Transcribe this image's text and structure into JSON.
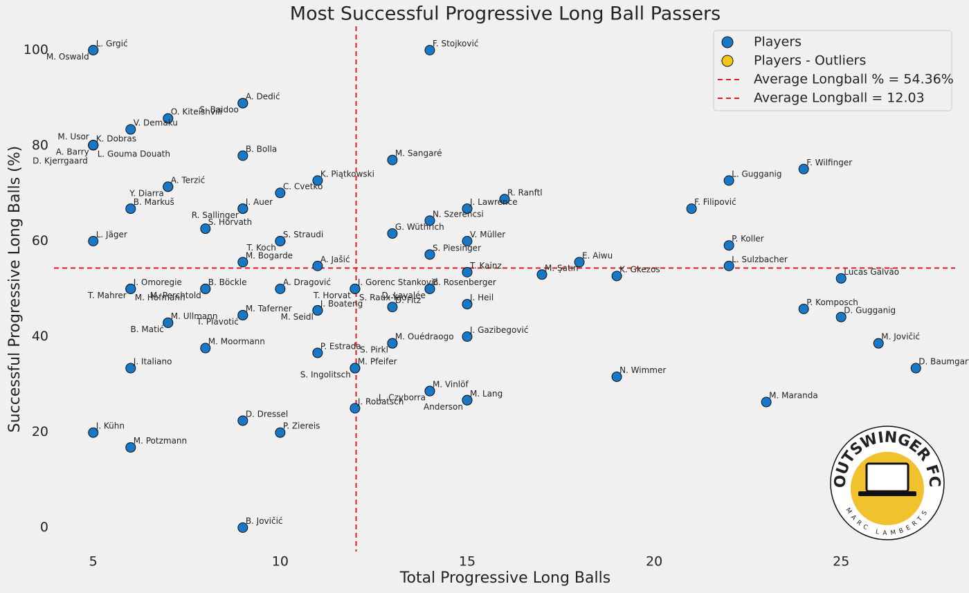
{
  "chart_data": {
    "type": "scatter",
    "title": "Most Successful Progressive Long Ball Passers",
    "xlabel": "Total Progressive Long Balls",
    "ylabel": "Successful Progressive Long Balls (%)",
    "xlim": [
      3.95,
      28.05
    ],
    "ylim": [
      -5,
      105
    ],
    "xticks": [
      5,
      10,
      15,
      20,
      25
    ],
    "yticks": [
      0,
      20,
      40,
      60,
      80,
      100
    ],
    "grid": false,
    "legend": "upper right",
    "series": [
      {
        "name": "Players",
        "color": "#1878c8",
        "labels": [
          "L. Grgić",
          "M. Oswald",
          "F. Stojković",
          "A. Dedić",
          "S. Baidoo",
          "O. Kiteishvili",
          "V. Demaku",
          "K. Dobras",
          "A. Barry",
          "L. Gouma Douath",
          "M. Usor",
          "D. Kjerrgaard",
          "B. Bolla",
          "M. Sangaré",
          "F. Wilfinger",
          "L. Gugganig",
          "K. Piątkowski",
          "A. Terzić",
          "Y. Diarra",
          "C. Cvetko",
          "R. Ranftl",
          "B. Markuš",
          "J. Auer",
          "R. Sallinger",
          "F. Filipović",
          "J. Lawrence",
          "N. Szerencsi",
          "S. Horvath",
          "G. Wüthrich",
          "L. Jäger",
          "S. Straudi",
          "T. Koch",
          "V. Müller",
          "P. Koller",
          "S. Piesinger",
          "M. Bogarde",
          "E. Aiwu",
          "A. Jašić",
          "L. Sulzbacher",
          "T. Kainz",
          "M. Şatın",
          "K. Gkezos",
          "Lucas Galvão",
          "J. Gorenc Stanković",
          "T. Horvat",
          "S. Raux-Yao",
          "B. Rosenberger",
          "D. Lavalée",
          "A. Dragović",
          "B. Böckle",
          "M. Perchtold",
          "J. Omoregie",
          "T. Mahrer",
          "M. Hofmann",
          "J. Heil",
          "D. Fitz",
          "P. Komposch",
          "J. Boateng",
          "M. Seidl",
          "M. Taferner",
          "T. Plavotić",
          "D. Gugganig",
          "M. Ullmann",
          "B. Matić",
          "J. Gazibegović",
          "M. Ouédraogo",
          "S. Pirkl",
          "M. Jovičić",
          "M. Moormann",
          "P. Estrada",
          "J. Italiano",
          "M. Pfeifer",
          "S. Ingolitsch",
          "D. Baumgartner",
          "N. Wimmer",
          "M. Vinlöf",
          "L. Czyborra",
          "M. Lang",
          "Anderson",
          "M. Maranda",
          "J. Robatsch",
          "D. Dressel",
          "J. Kühn",
          "P. Ziereis",
          "M. Potzmann",
          "B. Jovičić"
        ],
        "x": [
          5,
          5,
          14,
          9,
          9,
          7,
          6,
          5,
          5,
          5,
          5,
          5,
          9,
          13,
          24,
          22,
          11,
          7,
          7,
          10,
          16,
          6,
          9,
          9,
          21,
          15,
          14,
          8,
          13,
          5,
          10,
          10,
          15,
          22,
          14,
          9,
          18,
          11,
          22,
          15,
          17,
          19,
          25,
          12,
          12,
          12,
          14,
          14,
          10,
          8,
          8,
          6,
          6,
          6,
          15,
          13,
          24,
          11,
          11,
          9,
          9,
          25,
          7,
          7,
          15,
          13,
          13,
          26,
          8,
          11,
          6,
          12,
          12,
          27,
          19,
          14,
          14,
          15,
          15,
          23,
          12,
          9,
          5,
          10,
          6,
          9
        ],
        "y": [
          100,
          100,
          100,
          88.9,
          88.9,
          85.7,
          83.4,
          80.1,
          80.1,
          80.1,
          80.1,
          80.1,
          77.9,
          77.0,
          75.1,
          72.7,
          72.7,
          71.4,
          71.4,
          70.1,
          68.8,
          66.8,
          66.8,
          66.8,
          66.8,
          66.8,
          64.3,
          62.6,
          61.6,
          60,
          60,
          60,
          60,
          59.1,
          57.2,
          55.6,
          55.6,
          54.8,
          54.8,
          53.5,
          53.0,
          52.7,
          52.2,
          50,
          50,
          50,
          50,
          50,
          50,
          50,
          50,
          50,
          50,
          50,
          46.8,
          46.2,
          45.8,
          45.5,
          45.5,
          44.5,
          44.5,
          44.1,
          42.9,
          42.9,
          40,
          38.6,
          38.6,
          38.6,
          37.6,
          36.6,
          33.4,
          33.4,
          33.4,
          33.4,
          31.6,
          28.6,
          28.6,
          26.7,
          26.7,
          26.3,
          25,
          22.4,
          19.9,
          19.9,
          16.8,
          0
        ]
      },
      {
        "name": "Players - Outliers",
        "color": "#f5c518",
        "labels": [],
        "x": [],
        "y": []
      }
    ],
    "reference_lines": [
      {
        "axis": "y",
        "value": 54.36,
        "label": "Average Longball % = 54.36%",
        "color": "#e8191c"
      },
      {
        "axis": "x",
        "value": 12.03,
        "label": "Average Longball = 12.03",
        "color": "#e8191c"
      }
    ],
    "logo": {
      "title": "OUTSWINGER FC",
      "subtitle": "MARC LAMBERTS"
    }
  }
}
